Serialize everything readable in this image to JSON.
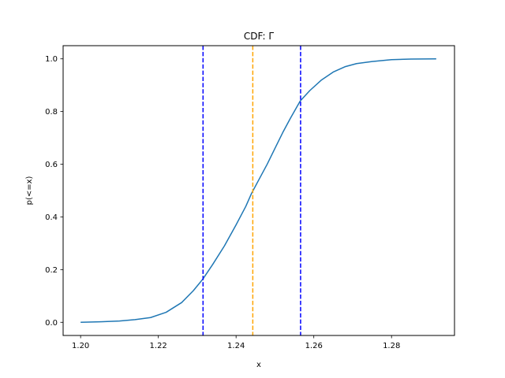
{
  "chart_data": {
    "type": "line",
    "title": "CDF: Γ",
    "xlabel": "x",
    "ylabel": "p(<=x)",
    "xlim": [
      1.1955,
      1.2962
    ],
    "ylim": [
      -0.05,
      1.05
    ],
    "xticks": [
      1.2,
      1.22,
      1.24,
      1.26,
      1.28
    ],
    "xtick_labels": [
      "1.20",
      "1.22",
      "1.24",
      "1.26",
      "1.28"
    ],
    "yticks": [
      0.0,
      0.2,
      0.4,
      0.6,
      0.8,
      1.0
    ],
    "ytick_labels": [
      "0.0",
      "0.2",
      "0.4",
      "0.6",
      "0.8",
      "1.0"
    ],
    "grid": false,
    "series": [
      {
        "color": "#1f77b4",
        "x": [
          1.2,
          1.205,
          1.21,
          1.214,
          1.218,
          1.222,
          1.226,
          1.229,
          1.2315,
          1.234,
          1.237,
          1.24,
          1.2425,
          1.244,
          1.246,
          1.248,
          1.25,
          1.252,
          1.254,
          1.2565,
          1.259,
          1.262,
          1.265,
          1.268,
          1.271,
          1.275,
          1.28,
          1.285,
          1.2915
        ],
        "y": [
          0.0,
          0.002,
          0.005,
          0.01,
          0.018,
          0.038,
          0.075,
          0.12,
          0.165,
          0.22,
          0.29,
          0.37,
          0.44,
          0.49,
          0.545,
          0.6,
          0.66,
          0.72,
          0.775,
          0.84,
          0.88,
          0.92,
          0.95,
          0.97,
          0.982,
          0.99,
          0.997,
          0.999,
          1.0
        ]
      }
    ],
    "vlines": [
      {
        "x": 1.2315,
        "color": "#0000ff",
        "style": "dashed"
      },
      {
        "x": 1.2443,
        "color": "#ffa500",
        "style": "dashed"
      },
      {
        "x": 1.2566,
        "color": "#0000ff",
        "style": "dashed"
      }
    ]
  }
}
